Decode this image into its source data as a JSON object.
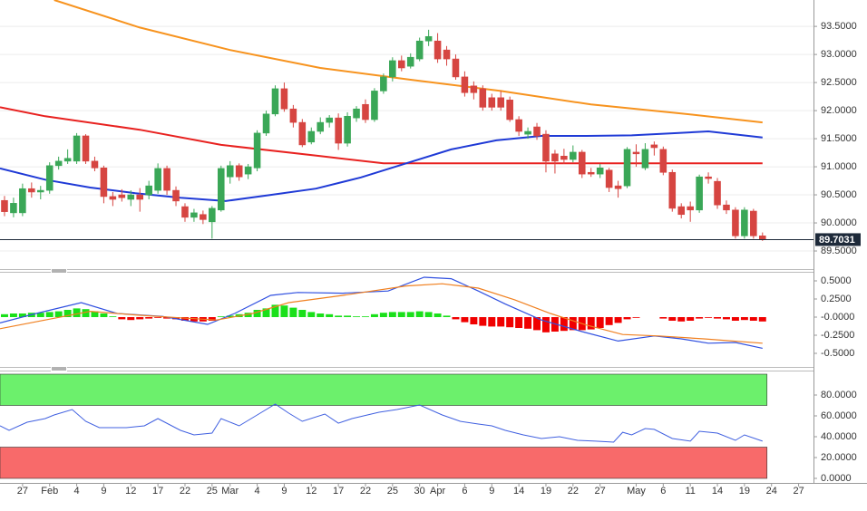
{
  "chart_data": [
    {
      "type": "candlestick",
      "ylim": [
        89.21,
        93.97
      ],
      "yticks": [
        {
          "value": 89.5,
          "label": "89.5000"
        },
        {
          "value": 90,
          "label": "90.0000"
        },
        {
          "value": 90.5,
          "label": "90.5000"
        },
        {
          "value": 91,
          "label": "91.0000"
        },
        {
          "value": 91.5,
          "label": "91.5000"
        },
        {
          "value": 92,
          "label": "92.0000"
        },
        {
          "value": 92.5,
          "label": "92.5000"
        },
        {
          "value": 93,
          "label": "93.0000"
        },
        {
          "value": 93.5,
          "label": "93.5000"
        }
      ],
      "grid": true,
      "up_color": "#3aa757",
      "down_color": "#d64541",
      "ohlc": [
        [
          90.4,
          90.48,
          90.12,
          90.2
        ],
        [
          90.18,
          90.45,
          90.1,
          90.35
        ],
        [
          90.18,
          90.7,
          90.12,
          90.61
        ],
        [
          90.61,
          90.72,
          90.45,
          90.55
        ],
        [
          90.55,
          90.66,
          90.42,
          90.58
        ],
        [
          90.58,
          91.08,
          90.52,
          91.02
        ],
        [
          91.02,
          91.18,
          90.95,
          91.1
        ],
        [
          91.1,
          91.31,
          91.05,
          91.15
        ],
        [
          91.1,
          91.6,
          91.05,
          91.55
        ],
        [
          91.55,
          91.58,
          91.05,
          91.1
        ],
        [
          91.1,
          91.18,
          90.92,
          90.98
        ],
        [
          90.98,
          91.02,
          90.35,
          90.47
        ],
        [
          90.47,
          90.55,
          90.3,
          90.42
        ],
        [
          90.5,
          90.6,
          90.38,
          90.45
        ],
        [
          90.42,
          90.58,
          90.3,
          90.5
        ],
        [
          90.5,
          90.62,
          90.2,
          90.42
        ],
        [
          90.5,
          90.75,
          90.42,
          90.66
        ],
        [
          90.58,
          91.06,
          90.52,
          90.97
        ],
        [
          90.97,
          91.02,
          90.5,
          90.58
        ],
        [
          90.58,
          90.65,
          90.3,
          90.39
        ],
        [
          90.29,
          90.35,
          90.02,
          90.1
        ],
        [
          90.1,
          90.25,
          90.02,
          90.18
        ],
        [
          90.15,
          90.22,
          89.98,
          90.06
        ],
        [
          90.02,
          90.3,
          89.72,
          90.26
        ],
        [
          90.23,
          91.02,
          90.2,
          90.97
        ],
        [
          90.82,
          91.1,
          90.7,
          91.02
        ],
        [
          91.02,
          91.06,
          90.75,
          90.82
        ],
        [
          90.87,
          91.05,
          90.78,
          91.0
        ],
        [
          90.98,
          91.65,
          90.92,
          91.6
        ],
        [
          91.6,
          92.0,
          91.55,
          91.94
        ],
        [
          91.94,
          92.45,
          91.9,
          92.39
        ],
        [
          92.39,
          92.5,
          91.98,
          92.03
        ],
        [
          92.03,
          92.1,
          91.7,
          91.79
        ],
        [
          91.79,
          91.85,
          91.35,
          91.39
        ],
        [
          91.44,
          91.7,
          91.4,
          91.63
        ],
        [
          91.63,
          91.88,
          91.58,
          91.79
        ],
        [
          91.79,
          91.92,
          91.7,
          91.87
        ],
        [
          91.87,
          91.95,
          91.3,
          91.42
        ],
        [
          91.42,
          91.97,
          91.36,
          91.9
        ],
        [
          91.87,
          92.08,
          91.8,
          92.03
        ],
        [
          92.11,
          92.2,
          91.78,
          91.84
        ],
        [
          91.84,
          92.4,
          91.8,
          92.35
        ],
        [
          92.35,
          92.66,
          92.3,
          92.6
        ],
        [
          92.6,
          92.95,
          92.52,
          92.89
        ],
        [
          92.89,
          92.98,
          92.7,
          92.76
        ],
        [
          92.79,
          93.02,
          92.75,
          92.95
        ],
        [
          92.92,
          93.3,
          92.88,
          93.24
        ],
        [
          93.24,
          93.44,
          93.15,
          93.32
        ],
        [
          93.24,
          93.38,
          92.85,
          92.92
        ],
        [
          93.08,
          93.15,
          92.8,
          92.92
        ],
        [
          92.92,
          93.0,
          92.55,
          92.6
        ],
        [
          92.6,
          92.7,
          92.25,
          92.32
        ],
        [
          92.44,
          92.52,
          92.2,
          92.32
        ],
        [
          92.39,
          92.45,
          92.0,
          92.06
        ],
        [
          92.23,
          92.3,
          92.0,
          92.06
        ],
        [
          92.23,
          92.35,
          92.0,
          92.06
        ],
        [
          92.19,
          92.25,
          91.8,
          91.84
        ],
        [
          91.84,
          91.9,
          91.55,
          91.63
        ],
        [
          91.58,
          91.7,
          91.5,
          91.63
        ],
        [
          91.71,
          91.78,
          91.48,
          91.55
        ],
        [
          91.58,
          91.65,
          90.9,
          91.1
        ],
        [
          91.23,
          91.3,
          90.88,
          91.1
        ],
        [
          91.19,
          91.32,
          91.05,
          91.13
        ],
        [
          91.13,
          91.38,
          91.08,
          91.26
        ],
        [
          91.26,
          91.3,
          90.8,
          90.87
        ],
        [
          90.9,
          90.98,
          90.82,
          90.87
        ],
        [
          90.87,
          91.05,
          90.8,
          90.98
        ],
        [
          90.94,
          90.98,
          90.55,
          90.63
        ],
        [
          90.66,
          90.75,
          90.45,
          90.61
        ],
        [
          90.66,
          91.35,
          90.62,
          91.31
        ],
        [
          91.26,
          91.4,
          91.0,
          91.23
        ],
        [
          90.98,
          91.42,
          90.94,
          91.31
        ],
        [
          91.39,
          91.45,
          91.2,
          91.34
        ],
        [
          91.31,
          91.36,
          90.85,
          90.9
        ],
        [
          90.9,
          90.95,
          90.2,
          90.26
        ],
        [
          90.29,
          90.35,
          90.08,
          90.15
        ],
        [
          90.29,
          90.38,
          90.02,
          90.23
        ],
        [
          90.23,
          90.86,
          90.18,
          90.82
        ],
        [
          90.82,
          90.9,
          90.7,
          90.79
        ],
        [
          90.74,
          90.8,
          90.25,
          90.32
        ],
        [
          90.32,
          90.4,
          90.16,
          90.23
        ],
        [
          90.23,
          90.28,
          89.72,
          89.77
        ],
        [
          89.77,
          90.28,
          89.72,
          90.23
        ],
        [
          90.21,
          90.25,
          89.72,
          89.77
        ],
        [
          89.77,
          89.83,
          89.68,
          89.7
        ]
      ],
      "lines": [
        {
          "color": "#f7931e",
          "x": [
            5.5,
            15,
            25,
            35,
            45,
            55,
            65,
            75,
            84
          ],
          "values": [
            93.97,
            93.48,
            93.08,
            92.76,
            92.55,
            92.35,
            92.11,
            91.95,
            91.79
          ]
        },
        {
          "color": "#e8211f",
          "x": [
            -0.5,
            4.5,
            15,
            24,
            35,
            42,
            55,
            70,
            84
          ],
          "values": [
            92.06,
            91.9,
            91.66,
            91.39,
            91.19,
            91.06,
            91.06,
            91.06,
            91.06
          ]
        },
        {
          "color": "#1f3ad6",
          "x": [
            -0.5,
            4.5,
            9.5,
            14.5,
            19.5,
            24.5,
            29.5,
            34.5,
            39.5,
            44.5,
            49.5,
            54.5,
            59.5,
            64.5,
            69.5,
            74.5,
            78,
            84
          ],
          "values": [
            90.97,
            90.77,
            90.63,
            90.53,
            90.45,
            90.39,
            90.5,
            90.61,
            90.81,
            91.06,
            91.31,
            91.47,
            91.55,
            91.55,
            91.56,
            91.6,
            91.63,
            91.52
          ]
        }
      ],
      "last_price": 89.7031
    },
    {
      "type": "macd",
      "ylim": [
        -0.6,
        0.6
      ],
      "yticks": [
        {
          "value": -0.5,
          "label": "-0.5000"
        },
        {
          "value": -0.25,
          "label": "-0.2500"
        },
        {
          "value": 0,
          "label": "-0.0000"
        },
        {
          "value": 0.25,
          "label": "0.2500"
        },
        {
          "value": 0.5,
          "label": "0.5000"
        }
      ],
      "up_color": "#19e019",
      "down_color": "#f00000",
      "histogram": [
        0.04,
        0.05,
        0.05,
        0.06,
        0.06,
        0.07,
        0.08,
        0.1,
        0.12,
        0.11,
        0.08,
        0.05,
        0.01,
        -0.03,
        -0.04,
        -0.03,
        -0.02,
        -0.01,
        -0.02,
        -0.03,
        -0.05,
        -0.06,
        -0.06,
        -0.05,
        0.01,
        0.02,
        0.04,
        0.06,
        0.1,
        0.12,
        0.17,
        0.16,
        0.13,
        0.1,
        0.07,
        0.05,
        0.04,
        0.02,
        0.02,
        0.01,
        0.01,
        0.04,
        0.06,
        0.07,
        0.07,
        0.07,
        0.08,
        0.07,
        0.05,
        0.02,
        -0.03,
        -0.07,
        -0.1,
        -0.12,
        -0.13,
        -0.13,
        -0.14,
        -0.15,
        -0.16,
        -0.18,
        -0.21,
        -0.2,
        -0.19,
        -0.18,
        -0.18,
        -0.17,
        -0.15,
        -0.11,
        -0.08,
        -0.03,
        -0.01,
        0.0,
        0.0,
        -0.02,
        -0.05,
        -0.06,
        -0.05,
        -0.02,
        -0.01,
        -0.02,
        -0.03,
        -0.05,
        -0.04,
        -0.05,
        -0.06
      ],
      "lines": [
        {
          "color": "#3050e0",
          "x": [
            -0.5,
            3.5,
            8.5,
            12.5,
            17.5,
            22.5,
            25.5,
            29.5,
            32.5,
            37.5,
            42.5,
            46.5,
            49.5,
            52.5,
            55.5,
            59.5,
            64,
            68,
            72,
            75,
            78,
            81,
            84
          ],
          "values": [
            -0.08,
            0.05,
            0.2,
            0.05,
            0.01,
            -0.1,
            0.05,
            0.3,
            0.34,
            0.33,
            0.36,
            0.55,
            0.53,
            0.36,
            0.18,
            -0.04,
            -0.2,
            -0.33,
            -0.26,
            -0.3,
            -0.36,
            -0.35,
            -0.43
          ]
        },
        {
          "color": "#f08020",
          "x": [
            -0.5,
            4.5,
            9.5,
            14.5,
            19.5,
            23.5,
            27.5,
            31.5,
            37.5,
            44.5,
            48.5,
            52.5,
            56.5,
            60.5,
            64.5,
            68.5,
            72.5,
            77.5,
            84
          ],
          "values": [
            -0.16,
            -0.04,
            0.08,
            0.03,
            -0.01,
            -0.04,
            0.05,
            0.2,
            0.3,
            0.43,
            0.46,
            0.4,
            0.24,
            0.05,
            -0.11,
            -0.24,
            -0.26,
            -0.3,
            -0.36
          ]
        }
      ]
    },
    {
      "type": "line",
      "ylim": [
        0,
        100
      ],
      "yticks": [
        {
          "value": 0,
          "label": "0.0000"
        },
        {
          "value": 20,
          "label": "20.0000"
        },
        {
          "value": 40,
          "label": "40.0000"
        },
        {
          "value": 60,
          "label": "60.0000"
        },
        {
          "value": 80,
          "label": "80.0000"
        }
      ],
      "bands": [
        {
          "from": 70,
          "to": 100,
          "color": "#6cf06c"
        },
        {
          "from": 0,
          "to": 30,
          "color": "#f86a6a"
        }
      ],
      "series": [
        {
          "color": "#4060e0",
          "x": [
            -0.5,
            0.5,
            2.5,
            4.5,
            5.5,
            7.5,
            9,
            10.5,
            13.5,
            15.5,
            17,
            19.5,
            21,
            23,
            24,
            26,
            28,
            30,
            31.5,
            33,
            35.5,
            37,
            38.5,
            41.5,
            43.5,
            46,
            48.5,
            50.5,
            52.5,
            54,
            55.5,
            57.5,
            59.5,
            61.5,
            63.5,
            65.5,
            67.5,
            68.5,
            69.5,
            71,
            72,
            74,
            76,
            77,
            79,
            81,
            82,
            84
          ],
          "values": [
            50.4,
            46.1,
            53.9,
            57.4,
            60.9,
            66.1,
            54.8,
            48.7,
            48.7,
            50.4,
            57.4,
            46.1,
            41.7,
            43.5,
            57.4,
            50.4,
            60.9,
            71.3,
            62.6,
            54.8,
            61.7,
            53.0,
            57.4,
            63.5,
            66.1,
            70.4,
            60.9,
            54.8,
            52.2,
            50.4,
            46.1,
            41.7,
            38.3,
            40.0,
            36.5,
            35.7,
            34.8,
            44.3,
            41.7,
            47.8,
            47.0,
            38.3,
            35.7,
            45.2,
            43.5,
            36.5,
            41.7,
            35.7
          ]
        }
      ],
      "xlim": [
        -0.5,
        89.65
      ],
      "xticks": [
        {
          "value": 2,
          "label": "27"
        },
        {
          "value": 5,
          "label": "Feb"
        },
        {
          "value": 8,
          "label": "4"
        },
        {
          "value": 11,
          "label": "9"
        },
        {
          "value": 14,
          "label": "12"
        },
        {
          "value": 17,
          "label": "17"
        },
        {
          "value": 20,
          "label": "22"
        },
        {
          "value": 23,
          "label": "25"
        },
        {
          "value": 25,
          "label": "Mar"
        },
        {
          "value": 28,
          "label": "4"
        },
        {
          "value": 31,
          "label": "9"
        },
        {
          "value": 34,
          "label": "12"
        },
        {
          "value": 37,
          "label": "17"
        },
        {
          "value": 40,
          "label": "22"
        },
        {
          "value": 43,
          "label": "25"
        },
        {
          "value": 46,
          "label": "30"
        },
        {
          "value": 48,
          "label": "Apr"
        },
        {
          "value": 51,
          "label": "6"
        },
        {
          "value": 54,
          "label": "9"
        },
        {
          "value": 57,
          "label": "14"
        },
        {
          "value": 60,
          "label": "19"
        },
        {
          "value": 63,
          "label": "22"
        },
        {
          "value": 66,
          "label": "27"
        },
        {
          "value": 70,
          "label": "May"
        },
        {
          "value": 73,
          "label": "6"
        },
        {
          "value": 76,
          "label": "11"
        },
        {
          "value": 79,
          "label": "14"
        },
        {
          "value": 82,
          "label": "19"
        },
        {
          "value": 85,
          "label": "24"
        },
        {
          "value": 88,
          "label": "27"
        }
      ]
    }
  ]
}
